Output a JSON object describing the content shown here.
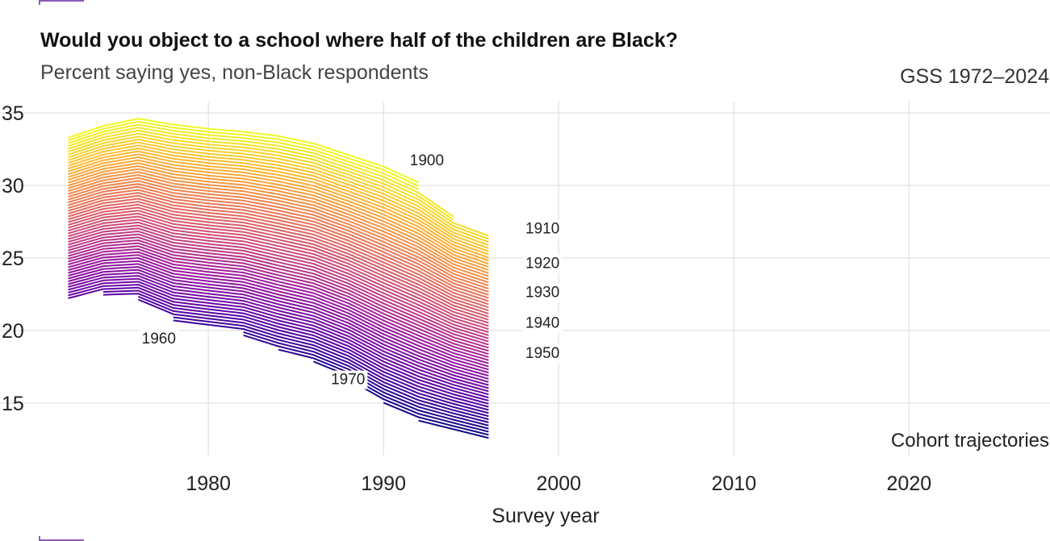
{
  "header": {
    "title": "Would you object to a school where half of the children are Black?",
    "subtitle": "Percent saying yes, non-Black respondents",
    "source": "GSS 1972–2024"
  },
  "colors": {
    "palette": "plasma",
    "gradient_stops": [
      "#0d0887",
      "#5c01a6",
      "#9c179e",
      "#cc4778",
      "#ed7953",
      "#fdb42f",
      "#f0f921"
    ],
    "grid": "#e2e2e2",
    "frame_corner": "#8e5bb3"
  },
  "chart_data": {
    "type": "line",
    "title": "Would you object to a school where half of the children are Black?",
    "subtitle": "Percent saying yes, non-Black respondents",
    "xlabel": "Survey year",
    "ylabel": "",
    "xlim": [
      1972,
      2028
    ],
    "ylim": [
      12,
      36
    ],
    "x_ticks": [
      1980,
      1990,
      2000,
      2010,
      2020
    ],
    "y_ticks": [
      15,
      20,
      25,
      30,
      35
    ],
    "grid": true,
    "legend": "none",
    "annotation": "Cohort trajectories",
    "cohort_range": [
      1900,
      1970
    ],
    "series_profile": {
      "description": "One line per birth cohort; values interpolated between the top (oldest) and bottom (youngest) envelopes",
      "top_cohort": 1900,
      "top_cohort_values": [
        {
          "x": 1972,
          "y": 33.3
        },
        {
          "x": 1974,
          "y": 34.1
        },
        {
          "x": 1976,
          "y": 34.6
        },
        {
          "x": 1978,
          "y": 34.2
        },
        {
          "x": 1980,
          "y": 33.9
        },
        {
          "x": 1982,
          "y": 33.7
        },
        {
          "x": 1984,
          "y": 33.4
        },
        {
          "x": 1986,
          "y": 32.9
        },
        {
          "x": 1988,
          "y": 32.1
        },
        {
          "x": 1990,
          "y": 31.3
        },
        {
          "x": 1992,
          "y": 30.2
        },
        {
          "x": 1994,
          "y": 28.5
        },
        {
          "x": 1996,
          "y": 27.6
        }
      ],
      "bottom_cohort": 1970,
      "bottom_cohort_values": [
        {
          "x": 1972,
          "y": 19.7
        },
        {
          "x": 1974,
          "y": 20.3
        },
        {
          "x": 1976,
          "y": 20.3
        },
        {
          "x": 1978,
          "y": 19.2
        },
        {
          "x": 1980,
          "y": 18.9
        },
        {
          "x": 1982,
          "y": 18.6
        },
        {
          "x": 1984,
          "y": 17.8
        },
        {
          "x": 1986,
          "y": 17.2
        },
        {
          "x": 1988,
          "y": 16.2
        },
        {
          "x": 1990,
          "y": 14.8
        },
        {
          "x": 1992,
          "y": 13.8
        },
        {
          "x": 1994,
          "y": 13.2
        },
        {
          "x": 1996,
          "y": 12.6
        }
      ],
      "cohort_end_years": [
        {
          "cohort_max": 1902,
          "end": 1992
        },
        {
          "cohort_max": 1904,
          "end": 1994
        },
        {
          "cohort_max": 1970,
          "end": 1996
        }
      ],
      "cohort_start_years": [
        {
          "cohort_min": 1957,
          "start": 1972
        },
        {
          "cohort_min": 1958,
          "start": 1974
        },
        {
          "cohort_min": 1960,
          "start": 1976
        },
        {
          "cohort_min": 1962,
          "start": 1978
        },
        {
          "cohort_min": 1964,
          "start": 1982
        },
        {
          "cohort_min": 1966,
          "start": 1984
        },
        {
          "cohort_min": 1967,
          "start": 1986
        },
        {
          "cohort_min": 1968,
          "start": 1988
        },
        {
          "cohort_min": 1969,
          "start": 1990
        },
        {
          "cohort_min": 1970,
          "start": 1992
        }
      ]
    },
    "cohort_labels": [
      {
        "text": "1900",
        "x": 1991.5,
        "y": 31.4
      },
      {
        "text": "1910",
        "x": 1998.1,
        "y": 26.7
      },
      {
        "text": "1920",
        "x": 1998.1,
        "y": 24.3
      },
      {
        "text": "1930",
        "x": 1998.1,
        "y": 22.3
      },
      {
        "text": "1940",
        "x": 1998.1,
        "y": 20.2
      },
      {
        "text": "1950",
        "x": 1998.1,
        "y": 18.1
      },
      {
        "text": "1960",
        "x": 1976.2,
        "y": 19.1
      },
      {
        "text": "1970",
        "x": 1987.0,
        "y": 16.3
      }
    ]
  }
}
